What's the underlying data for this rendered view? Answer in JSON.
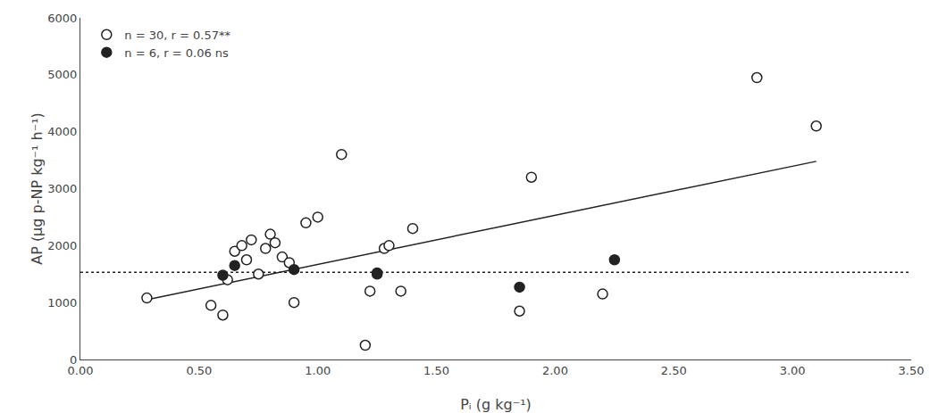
{
  "chart_data": {
    "type": "scatter",
    "xlabel": "Pᵢ (g kg⁻¹)",
    "ylabel": "AP (µg p-NP kg⁻¹ h⁻¹)",
    "xlim": [
      0.0,
      3.5
    ],
    "ylim": [
      0,
      6000
    ],
    "xticks": [
      {
        "value": 0.0,
        "label": "0.00"
      },
      {
        "value": 0.5,
        "label": "0.50"
      },
      {
        "value": 1.0,
        "label": "1.00"
      },
      {
        "value": 1.5,
        "label": "1.50"
      },
      {
        "value": 2.0,
        "label": "2.00"
      },
      {
        "value": 2.5,
        "label": "2.50"
      },
      {
        "value": 3.0,
        "label": "3.00"
      },
      {
        "value": 3.5,
        "label": "3.50"
      }
    ],
    "yticks": [
      0,
      1000,
      2000,
      3000,
      4000,
      5000,
      6000
    ],
    "grid": false,
    "legend": "upper left",
    "series": [
      {
        "name": "n = 30, r = 0.57**",
        "type": "scatter",
        "marker": "open circle",
        "color": "#222222",
        "x": [
          0.28,
          0.55,
          0.6,
          0.62,
          0.65,
          0.68,
          0.7,
          0.72,
          0.75,
          0.78,
          0.8,
          0.82,
          0.85,
          0.88,
          0.9,
          0.95,
          1.0,
          1.1,
          1.2,
          1.22,
          1.25,
          1.28,
          1.3,
          1.35,
          1.4,
          1.85,
          1.9,
          2.2,
          2.85,
          3.1
        ],
        "values": [
          1080,
          950,
          780,
          1400,
          1900,
          2000,
          1750,
          2100,
          1500,
          1950,
          2200,
          2050,
          1800,
          1700,
          1000,
          2400,
          2500,
          3600,
          250,
          1200,
          1500,
          1950,
          2000,
          1200,
          2300,
          850,
          3200,
          1150,
          4950,
          4100
        ]
      },
      {
        "name": "n = 6, r = 0.06 ns",
        "type": "scatter",
        "marker": "filled circle",
        "color": "#222222",
        "x": [
          0.6,
          0.65,
          0.9,
          1.25,
          1.85,
          2.25
        ],
        "values": [
          1480,
          1650,
          1580,
          1520,
          1270,
          1750
        ]
      },
      {
        "type": "line",
        "line_style": "solid",
        "color": "#222222",
        "x": [
          0.28,
          3.1
        ],
        "values": [
          1050,
          3480
        ]
      },
      {
        "type": "hline",
        "line_style": "dotted",
        "color": "#222222",
        "values": [
          1530
        ]
      }
    ]
  }
}
